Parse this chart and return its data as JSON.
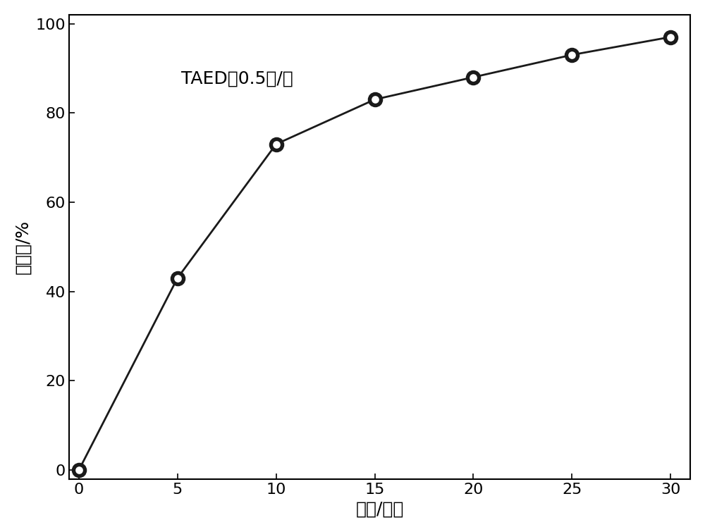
{
  "x": [
    0,
    5,
    10,
    15,
    20,
    25,
    30
  ],
  "y": [
    0,
    43,
    73,
    83,
    88,
    93,
    97
  ],
  "xlim": [
    -0.5,
    31
  ],
  "ylim": [
    -2,
    102
  ],
  "xticks": [
    0,
    5,
    10,
    15,
    20,
    25,
    30
  ],
  "yticks": [
    0,
    20,
    40,
    60,
    80,
    100
  ],
  "xlabel": "时间/分钟",
  "ylabel": "脱色率/%",
  "annotation": "TAED：0.5克/升",
  "line_color": "#1a1a1a",
  "marker_face_color": "#1a1a1a",
  "marker_edge_color": "#1a1a1a",
  "marker_size": 14,
  "line_width": 2.0,
  "title_fontsize": 16,
  "axis_fontsize": 18,
  "tick_fontsize": 16,
  "annot_fontsize": 18,
  "bg_color": "#ffffff",
  "spine_color": "#000000"
}
